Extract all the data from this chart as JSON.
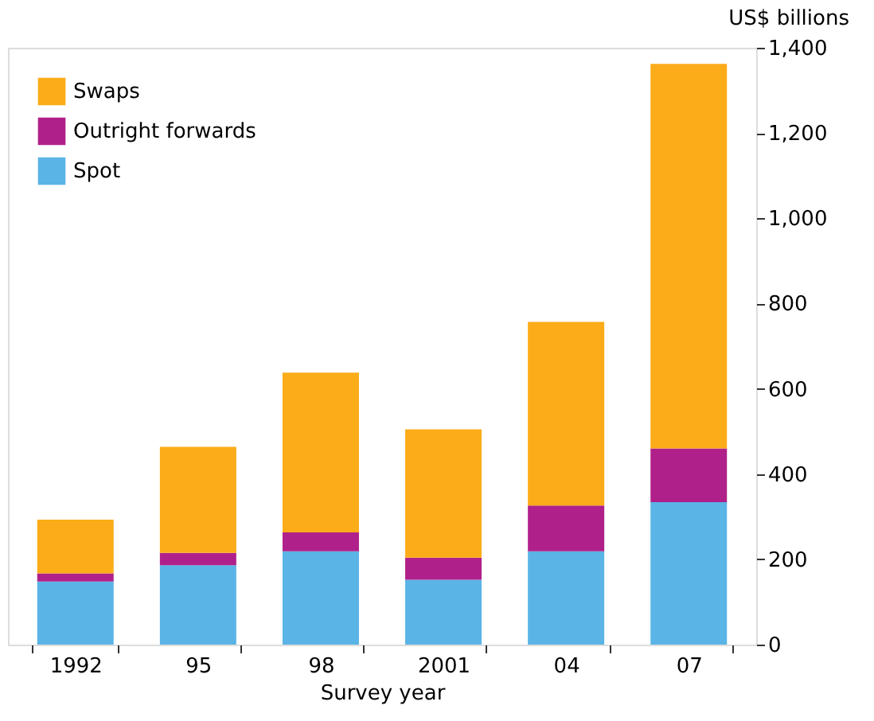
{
  "chart_data": {
    "type": "bar",
    "stacked": true,
    "xlabel": "Survey year",
    "ylabel": "US$ billions",
    "categories": [
      "1992",
      "95",
      "98",
      "2001",
      "04",
      "07"
    ],
    "series": [
      {
        "name": "Spot",
        "color": "#5ab4e5",
        "values": [
          148,
          186,
          219,
          152,
          219,
          334
        ]
      },
      {
        "name": "Outright forwards",
        "color": "#b0208a",
        "values": [
          19,
          29,
          44,
          52,
          107,
          126
        ]
      },
      {
        "name": "Swaps",
        "color": "#fbac18",
        "values": [
          126,
          249,
          375,
          301,
          431,
          902
        ]
      }
    ],
    "ylim": [
      0,
      1400
    ],
    "yticks": [
      0,
      200,
      400,
      600,
      800,
      {
        "value": 1000,
        "label": "1,000"
      },
      {
        "value": 1200,
        "label": "1,200"
      },
      {
        "value": 1400,
        "label": "1,400"
      }
    ],
    "grid": false,
    "legend": "top left"
  }
}
